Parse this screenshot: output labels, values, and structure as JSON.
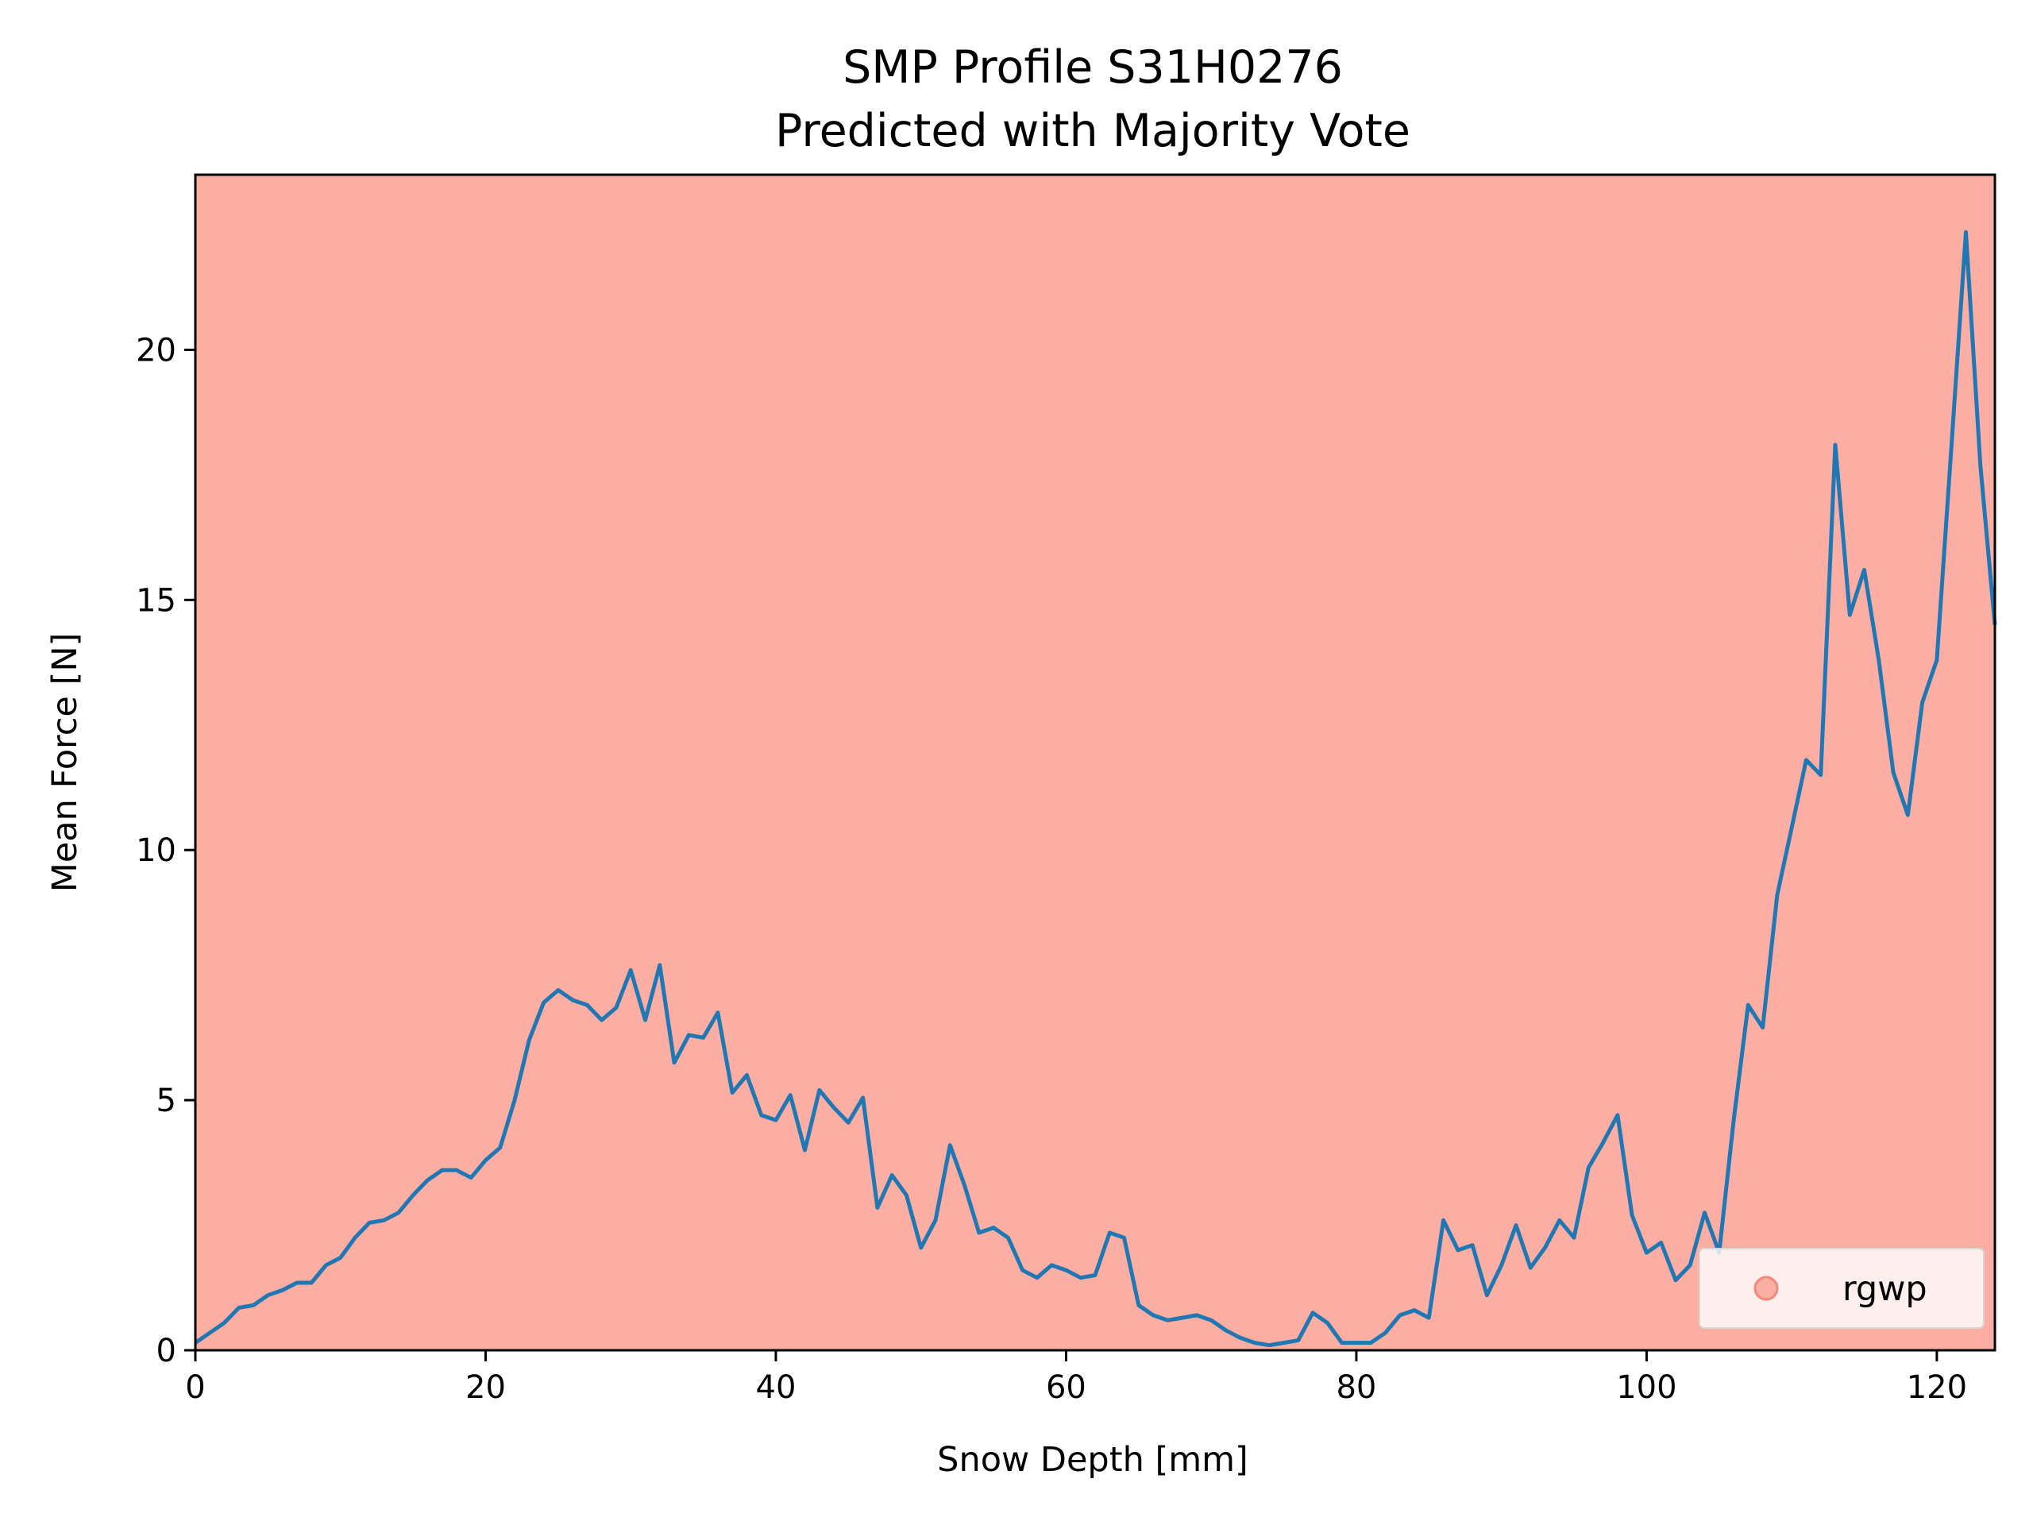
{
  "chart_data": {
    "type": "line",
    "title": "SMP Profile S31H0276",
    "subtitle": "Predicted with Majority Vote",
    "xlabel": "Snow Depth [mm]",
    "ylabel": "Mean Force [N]",
    "xlim": [
      0,
      124
    ],
    "ylim": [
      0,
      23.5
    ],
    "xticks": [
      0,
      20,
      40,
      60,
      80,
      100,
      120
    ],
    "yticks": [
      0,
      5,
      10,
      15,
      20
    ],
    "grid": false,
    "background_class": {
      "label": "rgwp",
      "color": "#fdaea3"
    },
    "line_color": "#1f77b4",
    "legend": {
      "placement": "lower-right",
      "entries": [
        "rgwp"
      ]
    },
    "series": [
      {
        "x": [
          0,
          1,
          2,
          3,
          4,
          5,
          6,
          7,
          8,
          9,
          10,
          11,
          12,
          13,
          14,
          15,
          16,
          17,
          18,
          19,
          20,
          21,
          22,
          23,
          24,
          25,
          26,
          27,
          28,
          29,
          30,
          31,
          32,
          33,
          34,
          35,
          36,
          37,
          38,
          39,
          40,
          41,
          42,
          43,
          44,
          45,
          46,
          47,
          48,
          49,
          50,
          51,
          52,
          53,
          54,
          55,
          56,
          57,
          58,
          59,
          60,
          61,
          62,
          63,
          64,
          65,
          66,
          67,
          68,
          69,
          70,
          71,
          72,
          73,
          74,
          75,
          76,
          77,
          78,
          79,
          80,
          81,
          82,
          83,
          84,
          85,
          86,
          87,
          88,
          89,
          90,
          91,
          92,
          93,
          94,
          95,
          96,
          97,
          98,
          99,
          100,
          101,
          102,
          103,
          104,
          105,
          106,
          107,
          108,
          109,
          110,
          111,
          112,
          113,
          114,
          115,
          116,
          117,
          118,
          119,
          120,
          121,
          122,
          123,
          124
        ],
        "y": [
          0.15,
          0.35,
          0.55,
          0.85,
          0.9,
          1.1,
          1.2,
          1.35,
          1.35,
          1.7,
          1.85,
          2.25,
          2.55,
          2.6,
          2.75,
          3.1,
          3.4,
          3.6,
          3.6,
          3.45,
          3.8,
          4.05,
          5.0,
          6.2,
          6.95,
          7.2,
          7.0,
          6.9,
          6.6,
          6.85,
          7.6,
          6.6,
          7.7,
          5.75,
          6.3,
          6.25,
          6.75,
          5.15,
          5.5,
          4.7,
          4.6,
          5.1,
          4.0,
          5.2,
          4.85,
          4.55,
          5.05,
          2.85,
          3.5,
          3.1,
          2.05,
          2.6,
          4.1,
          3.3,
          2.35,
          2.45,
          2.25,
          1.6,
          1.45,
          1.7,
          1.6,
          1.45,
          1.5,
          2.35,
          2.25,
          0.9,
          0.7,
          0.6,
          0.65,
          0.7,
          0.6,
          0.4,
          0.25,
          0.15,
          0.1,
          0.15,
          0.2,
          0.75,
          0.55,
          0.15,
          0.15,
          0.15,
          0.35,
          0.7,
          0.8,
          0.65,
          2.6,
          2.0,
          2.1,
          1.1,
          1.7,
          2.5,
          1.65,
          2.05,
          2.6,
          2.25,
          3.65,
          4.15,
          4.7,
          2.7,
          1.95,
          2.15,
          1.4,
          1.7,
          2.75,
          1.95,
          4.6,
          6.9,
          6.45,
          9.1,
          10.45,
          11.8,
          11.5,
          18.1,
          14.7,
          15.6,
          13.8,
          11.55,
          10.7,
          12.95,
          13.8,
          18.05,
          22.35,
          17.7,
          14.5
        ]
      }
    ]
  }
}
